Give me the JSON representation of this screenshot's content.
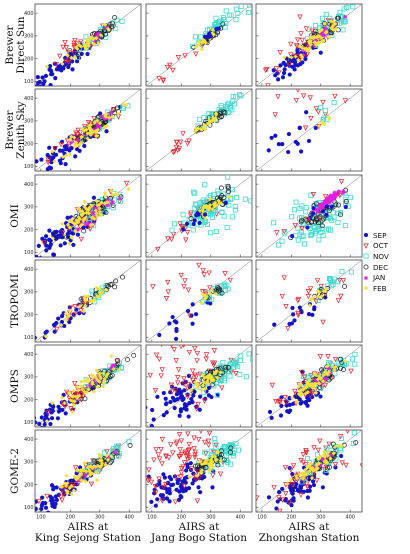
{
  "chart_data": {
    "type": "scatter",
    "layout": "grid",
    "rows": [
      "Brewer\nDirect Sun",
      "Brewer\nZenith Sky",
      "OMI",
      "TROPOMI",
      "OMPS",
      "GOME-2"
    ],
    "columns": [
      "AIRS at\nKing Sejong Station",
      "AIRS at\nJang Bogo Station",
      "AIRS at\nZhongshan Station"
    ],
    "xticks": [
      100,
      200,
      300,
      400
    ],
    "yticks": [
      100,
      200,
      300,
      400
    ],
    "xlim": [
      80,
      440
    ],
    "ylim": [
      80,
      440
    ],
    "reference_line": "1:1",
    "series": [
      {
        "name": "SEP",
        "marker": "filled-circle",
        "color": "#1515c8"
      },
      {
        "name": "OCT",
        "marker": "open-triangle-down",
        "color": "#e8202a"
      },
      {
        "name": "NOV",
        "marker": "open-square",
        "color": "#3fd9d0"
      },
      {
        "name": "DEC",
        "marker": "open-circle",
        "color": "#222222"
      },
      {
        "name": "JAN",
        "marker": "star",
        "color": "#e020e0"
      },
      {
        "name": "FEB",
        "marker": "filled-diamond",
        "color": "#f5e13a"
      }
    ],
    "panels": [
      {
        "row": 0,
        "col": 0,
        "clusters": [
          [
            0,
            150,
            140,
            50,
            0.9,
            40
          ],
          [
            0,
            230,
            230,
            40,
            0.9,
            30
          ],
          [
            1,
            220,
            240,
            60,
            0.9,
            25
          ],
          [
            2,
            300,
            300,
            40,
            0.9,
            20
          ],
          [
            3,
            290,
            300,
            40,
            0.9,
            25
          ],
          [
            4,
            290,
            300,
            30,
            0.9,
            10
          ],
          [
            5,
            260,
            270,
            40,
            0.9,
            30
          ]
        ]
      },
      {
        "row": 0,
        "col": 1,
        "clusters": [
          [
            1,
            180,
            180,
            40,
            0.9,
            10
          ],
          [
            2,
            320,
            340,
            40,
            0.9,
            40
          ],
          [
            3,
            300,
            300,
            20,
            0.9,
            20
          ],
          [
            5,
            290,
            290,
            20,
            0.9,
            20
          ],
          [
            0,
            300,
            310,
            20,
            0.9,
            8
          ]
        ]
      },
      {
        "row": 0,
        "col": 2,
        "clusters": [
          [
            0,
            210,
            190,
            40,
            0.9,
            45
          ],
          [
            1,
            260,
            270,
            70,
            0.8,
            45
          ],
          [
            2,
            330,
            340,
            50,
            0.8,
            40
          ],
          [
            3,
            300,
            300,
            40,
            0.9,
            35
          ],
          [
            4,
            310,
            310,
            30,
            0.9,
            20
          ],
          [
            5,
            290,
            290,
            40,
            0.9,
            50
          ]
        ]
      },
      {
        "row": 1,
        "col": 0,
        "clusters": [
          [
            0,
            180,
            170,
            60,
            0.9,
            60
          ],
          [
            1,
            250,
            240,
            60,
            0.9,
            40
          ],
          [
            2,
            310,
            300,
            40,
            0.9,
            30
          ],
          [
            3,
            300,
            290,
            40,
            0.9,
            40
          ],
          [
            4,
            290,
            280,
            30,
            0.9,
            15
          ],
          [
            5,
            270,
            260,
            50,
            0.9,
            50
          ]
        ]
      },
      {
        "row": 1,
        "col": 1,
        "clusters": [
          [
            1,
            180,
            180,
            40,
            0.9,
            12
          ],
          [
            2,
            320,
            330,
            35,
            0.9,
            40
          ],
          [
            3,
            300,
            300,
            25,
            0.9,
            25
          ],
          [
            5,
            290,
            290,
            20,
            0.9,
            20
          ]
        ]
      },
      {
        "row": 1,
        "col": 2,
        "clusters": [
          [
            0,
            200,
            200,
            60,
            0.4,
            15
          ],
          [
            1,
            280,
            360,
            60,
            0.3,
            15
          ],
          [
            2,
            320,
            320,
            30,
            0.5,
            6
          ],
          [
            5,
            320,
            300,
            20,
            0.9,
            5
          ]
        ]
      },
      {
        "row": 2,
        "col": 0,
        "clusters": [
          [
            0,
            180,
            190,
            60,
            0.85,
            80
          ],
          [
            1,
            260,
            260,
            50,
            0.85,
            40
          ],
          [
            2,
            300,
            290,
            40,
            0.85,
            40
          ],
          [
            3,
            300,
            300,
            40,
            0.85,
            40
          ],
          [
            4,
            290,
            280,
            30,
            0.9,
            20
          ],
          [
            5,
            260,
            270,
            50,
            0.85,
            60
          ]
        ]
      },
      {
        "row": 2,
        "col": 1,
        "clusters": [
          [
            1,
            220,
            230,
            50,
            0.8,
            25
          ],
          [
            2,
            300,
            290,
            50,
            0.5,
            90
          ],
          [
            3,
            310,
            310,
            30,
            0.8,
            30
          ],
          [
            5,
            290,
            290,
            25,
            0.8,
            30
          ],
          [
            0,
            260,
            250,
            40,
            0.8,
            10
          ]
        ]
      },
      {
        "row": 2,
        "col": 2,
        "clusters": [
          [
            2,
            290,
            250,
            50,
            0.5,
            90
          ],
          [
            3,
            300,
            280,
            40,
            0.7,
            40
          ],
          [
            4,
            320,
            320,
            20,
            0.9,
            60
          ],
          [
            0,
            280,
            250,
            40,
            0.6,
            10
          ],
          [
            1,
            270,
            270,
            50,
            0.6,
            10
          ]
        ]
      },
      {
        "row": 3,
        "col": 0,
        "clusters": [
          [
            0,
            170,
            170,
            50,
            0.9,
            25
          ],
          [
            1,
            220,
            220,
            40,
            0.9,
            15
          ],
          [
            2,
            300,
            300,
            30,
            0.9,
            15
          ],
          [
            3,
            310,
            310,
            30,
            0.9,
            15
          ],
          [
            5,
            250,
            250,
            40,
            0.9,
            25
          ]
        ]
      },
      {
        "row": 3,
        "col": 1,
        "clusters": [
          [
            0,
            200,
            180,
            50,
            0.8,
            15
          ],
          [
            1,
            260,
            340,
            60,
            0.3,
            20
          ],
          [
            2,
            320,
            300,
            30,
            0.8,
            20
          ],
          [
            3,
            310,
            300,
            25,
            0.8,
            10
          ],
          [
            5,
            290,
            290,
            20,
            0.8,
            8
          ]
        ]
      },
      {
        "row": 3,
        "col": 2,
        "clusters": [
          [
            0,
            230,
            200,
            50,
            0.8,
            15
          ],
          [
            1,
            290,
            300,
            60,
            0.4,
            20
          ],
          [
            2,
            340,
            340,
            30,
            0.8,
            15
          ],
          [
            3,
            310,
            300,
            25,
            0.8,
            10
          ],
          [
            5,
            300,
            290,
            20,
            0.8,
            10
          ]
        ]
      },
      {
        "row": 4,
        "col": 0,
        "clusters": [
          [
            0,
            170,
            170,
            60,
            0.9,
            60
          ],
          [
            1,
            240,
            240,
            50,
            0.9,
            40
          ],
          [
            2,
            310,
            300,
            40,
            0.9,
            30
          ],
          [
            3,
            310,
            300,
            40,
            0.9,
            30
          ],
          [
            4,
            290,
            290,
            30,
            0.9,
            10
          ],
          [
            5,
            260,
            260,
            50,
            0.9,
            50
          ]
        ]
      },
      {
        "row": 4,
        "col": 1,
        "clusters": [
          [
            0,
            200,
            200,
            50,
            0.4,
            60
          ],
          [
            1,
            240,
            330,
            70,
            0.2,
            60
          ],
          [
            2,
            330,
            310,
            40,
            0.7,
            60
          ],
          [
            3,
            300,
            300,
            30,
            0.8,
            30
          ],
          [
            5,
            290,
            290,
            25,
            0.8,
            30
          ]
        ]
      },
      {
        "row": 4,
        "col": 2,
        "clusters": [
          [
            0,
            220,
            200,
            50,
            0.8,
            45
          ],
          [
            1,
            260,
            260,
            60,
            0.7,
            40
          ],
          [
            2,
            320,
            320,
            40,
            0.8,
            40
          ],
          [
            3,
            310,
            300,
            40,
            0.9,
            35
          ],
          [
            4,
            310,
            300,
            25,
            0.9,
            10
          ],
          [
            5,
            280,
            280,
            40,
            0.9,
            50
          ]
        ]
      },
      {
        "row": 5,
        "col": 0,
        "clusters": [
          [
            0,
            170,
            170,
            60,
            0.9,
            60
          ],
          [
            1,
            240,
            240,
            50,
            0.9,
            40
          ],
          [
            2,
            300,
            300,
            40,
            0.9,
            30
          ],
          [
            3,
            300,
            290,
            40,
            0.9,
            30
          ],
          [
            4,
            280,
            280,
            30,
            0.9,
            10
          ],
          [
            5,
            260,
            260,
            50,
            0.9,
            50
          ]
        ]
      },
      {
        "row": 5,
        "col": 1,
        "clusters": [
          [
            0,
            190,
            190,
            50,
            0.5,
            80
          ],
          [
            1,
            230,
            310,
            70,
            0.2,
            80
          ],
          [
            2,
            330,
            320,
            40,
            0.7,
            60
          ],
          [
            3,
            300,
            300,
            30,
            0.8,
            30
          ],
          [
            5,
            290,
            290,
            25,
            0.8,
            30
          ]
        ]
      },
      {
        "row": 5,
        "col": 2,
        "clusters": [
          [
            0,
            220,
            200,
            50,
            0.7,
            60
          ],
          [
            1,
            250,
            250,
            60,
            0.6,
            50
          ],
          [
            2,
            320,
            320,
            40,
            0.8,
            40
          ],
          [
            3,
            310,
            300,
            40,
            0.9,
            35
          ],
          [
            4,
            300,
            300,
            25,
            0.9,
            10
          ],
          [
            5,
            280,
            280,
            40,
            0.9,
            50
          ]
        ]
      }
    ]
  }
}
